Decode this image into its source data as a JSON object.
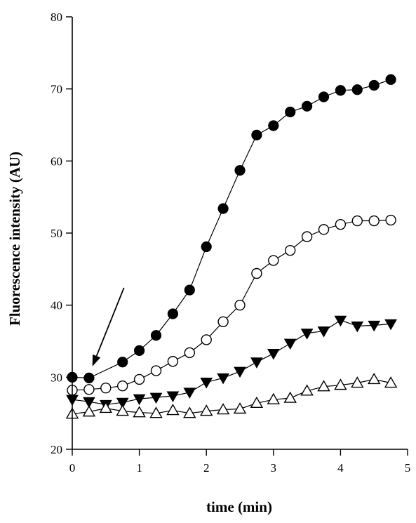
{
  "chart_data": {
    "type": "scatter",
    "xlabel": "time (min)",
    "ylabel": "Fluorescence intensity (AU)",
    "xlim": [
      0,
      5
    ],
    "ylim": [
      20,
      80
    ],
    "x_ticks": [
      0,
      1,
      2,
      3,
      4,
      5
    ],
    "y_ticks": [
      20,
      30,
      40,
      50,
      60,
      70,
      80
    ],
    "grid": false,
    "lines_connect_points": true,
    "annotation": {
      "type": "arrow",
      "points_to_x": 0.3,
      "points_to_y": 31.5
    },
    "series": [
      {
        "marker": "filled-circle",
        "x": [
          0,
          0.25,
          0.75,
          1.0,
          1.25,
          1.5,
          1.75,
          2.0,
          2.25,
          2.5,
          2.75,
          3.0,
          3.25,
          3.5,
          3.75,
          4.0,
          4.25,
          4.5,
          4.75
        ],
        "y": [
          30.0,
          29.9,
          32.1,
          33.7,
          35.8,
          38.8,
          42.1,
          48.1,
          53.4,
          58.7,
          63.6,
          64.9,
          66.8,
          67.6,
          68.9,
          69.8,
          69.9,
          70.5,
          71.3
        ]
      },
      {
        "marker": "open-circle",
        "x": [
          0,
          0.25,
          0.5,
          0.75,
          1.0,
          1.25,
          1.5,
          1.75,
          2.0,
          2.25,
          2.5,
          2.75,
          3.0,
          3.25,
          3.5,
          3.75,
          4.0,
          4.25,
          4.5,
          4.75
        ],
        "y": [
          28.2,
          28.3,
          28.5,
          28.8,
          29.7,
          30.9,
          32.2,
          33.4,
          35.2,
          37.7,
          40.0,
          44.4,
          46.2,
          47.6,
          49.5,
          50.5,
          51.2,
          51.7,
          51.7,
          51.8
        ]
      },
      {
        "marker": "filled-triangle-down",
        "x": [
          0,
          0.25,
          0.5,
          0.75,
          1.0,
          1.25,
          1.5,
          1.75,
          2.0,
          2.25,
          2.5,
          2.75,
          3.0,
          3.25,
          3.5,
          3.75,
          4.0,
          4.25,
          4.5,
          4.75
        ],
        "y": [
          26.9,
          26.6,
          26.2,
          26.5,
          27.0,
          27.2,
          27.4,
          27.9,
          29.3,
          29.9,
          30.8,
          32.1,
          33.3,
          34.7,
          36.1,
          36.4,
          37.9,
          37.1,
          37.2,
          37.4
        ]
      },
      {
        "marker": "open-triangle-up",
        "x": [
          0,
          0.25,
          0.5,
          0.75,
          1.0,
          1.25,
          1.5,
          1.75,
          2.0,
          2.25,
          2.5,
          2.75,
          3.0,
          3.25,
          3.5,
          3.75,
          4.0,
          4.25,
          4.5,
          4.75
        ],
        "y": [
          24.9,
          25.2,
          25.7,
          25.3,
          25.1,
          25.0,
          25.4,
          25.0,
          25.3,
          25.5,
          25.6,
          26.4,
          26.9,
          27.1,
          28.1,
          28.7,
          28.9,
          29.2,
          29.7,
          29.2
        ]
      }
    ]
  }
}
